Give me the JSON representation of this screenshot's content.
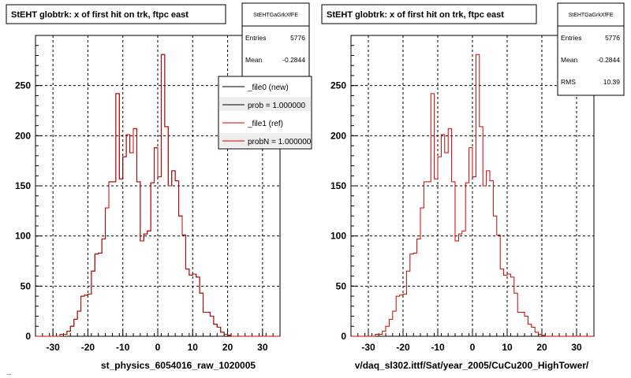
{
  "chart_data": [
    {
      "type": "histogram",
      "title": "StEHT globtrk: x of first hit on trk, ftpc east",
      "xlabel": "st_physics_6054016_raw_1020005",
      "ylabel": "",
      "xlim": [
        -35,
        35
      ],
      "ylim": [
        0,
        300
      ],
      "xticks": [
        "-30",
        "-20",
        "-10",
        "0",
        "10",
        "20",
        "30"
      ],
      "yticks": [
        "0",
        "50",
        "100",
        "150",
        "200",
        "250"
      ],
      "grid": true,
      "bin_width": 1,
      "bin_edges_start": -35,
      "series": [
        {
          "name": "_file0 (new)",
          "color": "#000000",
          "values": [
            0,
            0,
            0,
            0,
            0,
            0,
            0,
            2,
            2,
            5,
            10,
            17,
            25,
            40,
            41,
            42,
            65,
            82,
            83,
            97,
            128,
            154,
            154,
            242,
            157,
            179,
            201,
            183,
            207,
            154,
            95,
            102,
            105,
            153,
            188,
            159,
            281,
            209,
            150,
            165,
            155,
            120,
            101,
            67,
            61,
            62,
            59,
            43,
            24,
            24,
            20,
            12,
            9,
            4,
            2,
            1,
            0,
            0,
            0,
            0,
            0,
            0,
            0,
            0,
            0,
            0,
            0,
            0,
            0,
            0
          ]
        },
        {
          "name": "_file1 (ref)",
          "color": "#cc0000",
          "values": [
            0,
            0,
            0,
            0,
            0,
            0,
            0,
            2,
            2,
            5,
            10,
            17,
            25,
            40,
            41,
            42,
            65,
            82,
            83,
            97,
            128,
            154,
            154,
            242,
            157,
            179,
            201,
            183,
            207,
            154,
            95,
            102,
            105,
            153,
            188,
            159,
            281,
            209,
            150,
            165,
            155,
            120,
            101,
            67,
            61,
            62,
            59,
            43,
            24,
            24,
            20,
            12,
            9,
            4,
            2,
            1,
            0,
            0,
            0,
            0,
            0,
            0,
            0,
            0,
            0,
            0,
            0,
            0,
            0,
            0
          ]
        }
      ]
    },
    {
      "type": "histogram",
      "title": "StEHT globtrk: x of first hit on trk, ftpc east",
      "xlabel": "v/daq_sl302.ittf/Sat/year_2005/CuCu200_HighTower/",
      "ylabel": "",
      "xlim": [
        -35,
        35
      ],
      "ylim": [
        0,
        300
      ],
      "xticks": [
        "-30",
        "-20",
        "-10",
        "0",
        "10",
        "20",
        "30"
      ],
      "yticks": [
        "0",
        "50",
        "100",
        "150",
        "200",
        "250"
      ],
      "grid": true,
      "bin_width": 1,
      "bin_edges_start": -35,
      "series": [
        {
          "name": "",
          "color": "#cc0000",
          "values": [
            0,
            0,
            0,
            0,
            0,
            0,
            0,
            2,
            2,
            5,
            10,
            17,
            25,
            40,
            41,
            42,
            65,
            82,
            83,
            97,
            128,
            154,
            154,
            242,
            157,
            179,
            201,
            183,
            207,
            154,
            95,
            102,
            105,
            153,
            188,
            159,
            281,
            209,
            150,
            165,
            155,
            120,
            101,
            67,
            61,
            62,
            59,
            43,
            24,
            24,
            20,
            12,
            9,
            4,
            2,
            1,
            0,
            0,
            0,
            0,
            0,
            0,
            0,
            0,
            0,
            0,
            0,
            0,
            0,
            0
          ]
        }
      ]
    }
  ],
  "panels": [
    {
      "stats_title": "StEHTGaGrkXfFE",
      "stats": [
        {
          "label": "Entries",
          "value": "5776"
        },
        {
          "label": "Mean",
          "value": "-0.2844"
        }
      ],
      "legend": [
        {
          "label": "_file0 (new)",
          "color": "#000000"
        },
        {
          "label": "prob = 1.000000",
          "color": "#000000"
        },
        {
          "label": "_file1 (ref)",
          "color": "#cc0000"
        },
        {
          "label": "probN = 1.000000",
          "color": "#cc0000"
        }
      ]
    },
    {
      "stats_title": "StEHTGaGrkXfFE",
      "stats": [
        {
          "label": "Entries",
          "value": "5776"
        },
        {
          "label": "Mean",
          "value": "-0.2844"
        },
        {
          "label": "RMS",
          "value": "10.39"
        }
      ],
      "legend": []
    }
  ],
  "footer_timestamp": "..."
}
